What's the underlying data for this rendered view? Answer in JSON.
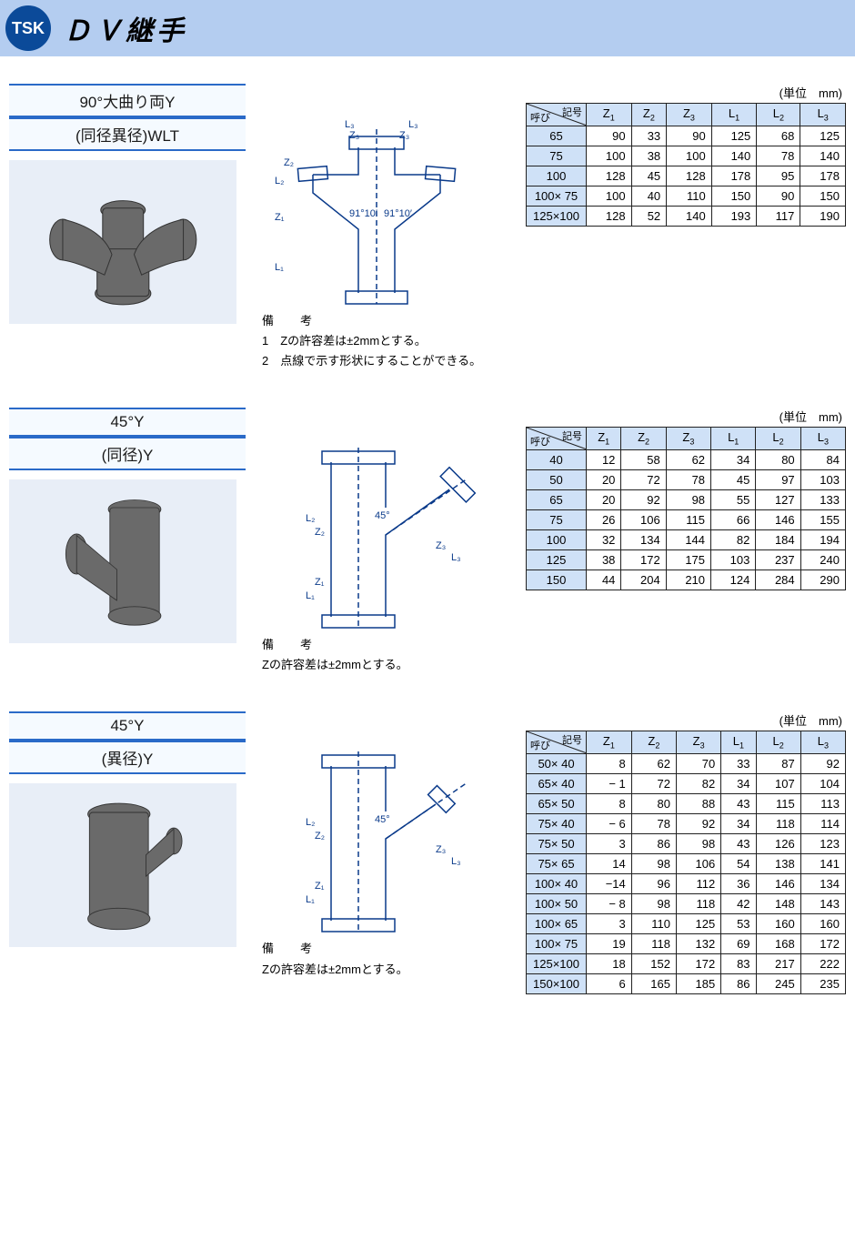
{
  "header": {
    "logo_text": "TSK",
    "title": "ＤＶ継手"
  },
  "unit_label": "(単位　mm)",
  "corner": {
    "top": "記号",
    "bottom": "呼び"
  },
  "columns": [
    "Z₁",
    "Z₂",
    "Z₃",
    "L₁",
    "L₂",
    "L₃"
  ],
  "notes_heading": "備　考",
  "angle_45": "45°",
  "angle_90": "91°10′",
  "diagram_labels": [
    "L₁",
    "L₂",
    "L₃",
    "Z₁",
    "Z₂",
    "Z₃"
  ],
  "sections": [
    {
      "title_lines": [
        "90°大曲り両Y",
        "(同径異径)WLT"
      ],
      "photo_shape": "double-wye",
      "diagram_shape": "double-wye",
      "notes": [
        "1　Zの許容差は±2mmとする。",
        "2　点線で示す形状にすることができる。"
      ],
      "rows": [
        {
          "size": "65",
          "v": [
            90,
            33,
            90,
            125,
            68,
            125
          ]
        },
        {
          "size": "75",
          "v": [
            100,
            38,
            100,
            140,
            78,
            140
          ]
        },
        {
          "size": "100",
          "v": [
            128,
            45,
            128,
            178,
            95,
            178
          ]
        },
        {
          "size": "100× 75",
          "v": [
            100,
            40,
            110,
            150,
            90,
            150
          ]
        },
        {
          "size": "125×100",
          "v": [
            128,
            52,
            140,
            193,
            117,
            190
          ]
        }
      ]
    },
    {
      "title_lines": [
        "45°Y",
        "(同径)Y"
      ],
      "photo_shape": "wye-same",
      "diagram_shape": "wye",
      "notes": [
        "Zの許容差は±2mmとする。"
      ],
      "rows": [
        {
          "size": "40",
          "v": [
            12,
            58,
            62,
            34,
            80,
            84
          ]
        },
        {
          "size": "50",
          "v": [
            20,
            72,
            78,
            45,
            97,
            103
          ]
        },
        {
          "size": "65",
          "v": [
            20,
            92,
            98,
            55,
            127,
            133
          ]
        },
        {
          "size": "75",
          "v": [
            26,
            106,
            115,
            66,
            146,
            155
          ]
        },
        {
          "size": "100",
          "v": [
            32,
            134,
            144,
            82,
            184,
            194
          ]
        },
        {
          "size": "125",
          "v": [
            38,
            172,
            175,
            103,
            237,
            240
          ]
        },
        {
          "size": "150",
          "v": [
            44,
            204,
            210,
            124,
            284,
            290
          ]
        }
      ]
    },
    {
      "title_lines": [
        "45°Y",
        "(異径)Y"
      ],
      "photo_shape": "wye-reducer",
      "diagram_shape": "wye-reducer",
      "notes": [
        "Zの許容差は±2mmとする。"
      ],
      "rows": [
        {
          "size": "50× 40",
          "v": [
            8,
            62,
            70,
            33,
            87,
            92
          ]
        },
        {
          "size": "65× 40",
          "v": [
            "− 1",
            72,
            82,
            34,
            107,
            104
          ]
        },
        {
          "size": "65× 50",
          "v": [
            8,
            80,
            88,
            43,
            115,
            113
          ]
        },
        {
          "size": "75× 40",
          "v": [
            "− 6",
            78,
            92,
            34,
            118,
            114
          ]
        },
        {
          "size": "75× 50",
          "v": [
            3,
            86,
            98,
            43,
            126,
            123
          ]
        },
        {
          "size": "75× 65",
          "v": [
            14,
            98,
            106,
            54,
            138,
            141
          ]
        },
        {
          "size": "100× 40",
          "v": [
            "−14",
            96,
            112,
            36,
            146,
            134
          ]
        },
        {
          "size": "100× 50",
          "v": [
            "− 8",
            98,
            118,
            42,
            148,
            143
          ]
        },
        {
          "size": "100× 65",
          "v": [
            3,
            110,
            125,
            53,
            160,
            160
          ]
        },
        {
          "size": "100× 75",
          "v": [
            19,
            118,
            132,
            69,
            168,
            172
          ]
        },
        {
          "size": "125×100",
          "v": [
            18,
            152,
            172,
            83,
            217,
            222
          ]
        },
        {
          "size": "150×100",
          "v": [
            6,
            165,
            185,
            86,
            245,
            235
          ]
        }
      ]
    }
  ],
  "colors": {
    "header_bg": "#b4cdf0",
    "logo_bg": "#0b4a99",
    "rule": "#2a6ac8",
    "table_header_bg": "#cfe1f7",
    "photo_fill": "#6a6a6a",
    "diagram_stroke": "#0a3a8a"
  }
}
